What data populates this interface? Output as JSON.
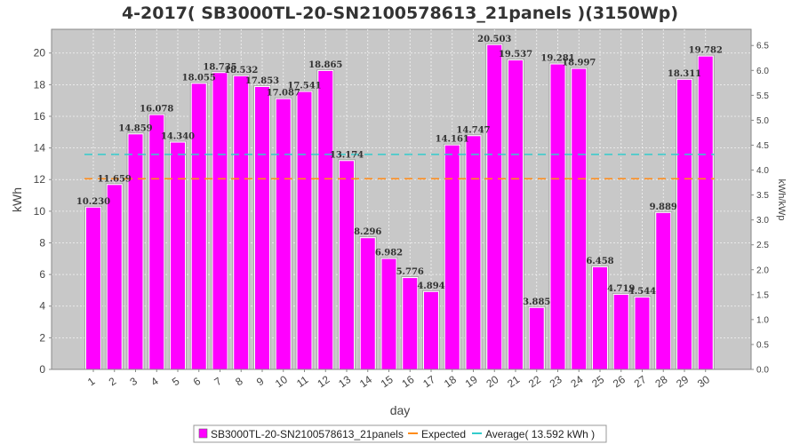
{
  "chart_data": {
    "type": "bar",
    "title": "4-2017( SB3000TL-20-SN2100578613_21panels )(3150Wp)",
    "xlabel": "day",
    "ylabel": "kWh",
    "y2label": "kWh/kWp",
    "ylim": [
      0,
      21.5
    ],
    "y2lim": [
      0,
      6.825
    ],
    "yticks": [
      0,
      2,
      4,
      6,
      8,
      10,
      12,
      14,
      16,
      18,
      20
    ],
    "y2ticks": [
      "0.0",
      "0.5",
      "1.0",
      "1.5",
      "2.0",
      "2.5",
      "3.0",
      "3.5",
      "4.0",
      "4.5",
      "5.0",
      "5.5",
      "6.0",
      "6.5"
    ],
    "grid": true,
    "legend_position": "bottom",
    "categories": [
      "1",
      "2",
      "3",
      "4",
      "5",
      "6",
      "7",
      "8",
      "9",
      "10",
      "11",
      "12",
      "13",
      "14",
      "15",
      "16",
      "17",
      "18",
      "19",
      "20",
      "21",
      "22",
      "23",
      "24",
      "25",
      "26",
      "27",
      "28",
      "29",
      "30"
    ],
    "series": [
      {
        "name": "SB3000TL-20-SN2100578613_21panels",
        "color": "#ff00ff",
        "values": [
          10.23,
          11.659,
          14.859,
          16.078,
          14.34,
          18.055,
          18.735,
          18.532,
          17.853,
          17.087,
          17.541,
          18.865,
          13.174,
          8.296,
          6.982,
          5.776,
          4.894,
          14.161,
          14.747,
          20.503,
          19.537,
          3.885,
          19.281,
          18.997,
          6.458,
          4.719,
          4.544,
          9.889,
          18.311,
          19.782
        ],
        "labels": [
          "10.230",
          "11.659",
          "14.859",
          "16.078",
          "14.340",
          "18.055",
          "18.735",
          "18.532",
          "17.853",
          "17.087",
          "17.541",
          "18.865",
          "13.174",
          "8.296",
          "6.982",
          "5.776",
          "4.894",
          "14.161",
          "14.747",
          "20.503",
          "19.537",
          "3.885",
          "19.281",
          "18.997",
          "6.458",
          "4.719",
          "4.544",
          "9.889",
          "18.311",
          "19.782"
        ]
      }
    ],
    "lines": [
      {
        "name": "Expected",
        "value": 12.05,
        "color": "#ff8c1a"
      },
      {
        "name": "Average( 13.592 kWh )",
        "value": 13.592,
        "color": "#33cccc"
      }
    ]
  }
}
